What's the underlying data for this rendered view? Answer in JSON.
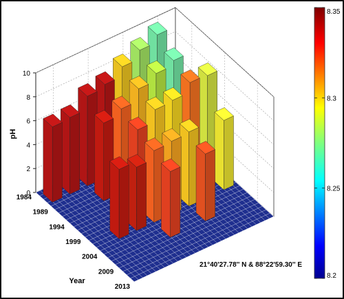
{
  "chart_data": {
    "type": "bar3d",
    "zlabel": "pH",
    "ylabel": "Year",
    "zlim": [
      0,
      10
    ],
    "z_ticks": [
      "0",
      "2",
      "4",
      "6",
      "8",
      "10"
    ],
    "year_ticks": [
      "1984",
      "1989",
      "1994",
      "1999",
      "2004",
      "2009",
      "2013"
    ],
    "annotation": "21°40'27.78'' N & 88°22'59.30'' E",
    "colorbar": {
      "min": 8.2,
      "max": 8.35,
      "ticks": [
        "8.35",
        "8.3",
        "8.25",
        "8.2"
      ],
      "colormap": "jet"
    },
    "grid": true,
    "floor_color": "#1f2f8f",
    "bars": [
      {
        "row": 1,
        "col": 1,
        "height": 6.3,
        "color": "#b01515"
      },
      {
        "row": 1,
        "col": 2,
        "height": 6.4,
        "color": "#b01515"
      },
      {
        "row": 1,
        "col": 3,
        "height": 7.5,
        "color": "#b01515"
      },
      {
        "row": 1,
        "col": 4,
        "height": 7.8,
        "color": "#b01515"
      },
      {
        "row": 1,
        "col": 5,
        "height": 8.6,
        "color": "#e8c020"
      },
      {
        "row": 1,
        "col": 6,
        "height": 9.3,
        "color": "#9fe060"
      },
      {
        "row": 1,
        "col": 7,
        "height": 9.9,
        "color": "#70e0a0"
      },
      {
        "row": 2,
        "col": 3,
        "height": 6.5,
        "color": "#c01a10"
      },
      {
        "row": 2,
        "col": 4,
        "height": 7.0,
        "color": "#f06020"
      },
      {
        "row": 2,
        "col": 5,
        "height": 8.0,
        "color": "#f0b020"
      },
      {
        "row": 2,
        "col": 6,
        "height": 8.6,
        "color": "#b0e040"
      },
      {
        "row": 2,
        "col": 7,
        "height": 9.0,
        "color": "#70e0a0"
      },
      {
        "row": 3,
        "col": 4,
        "height": 6.5,
        "color": "#e04020"
      },
      {
        "row": 3,
        "col": 5,
        "height": 7.5,
        "color": "#f0c020"
      },
      {
        "row": 3,
        "col": 6,
        "height": 7.6,
        "color": "#f0d020"
      },
      {
        "row": 3,
        "col": 7,
        "height": 8.4,
        "color": "#f07020"
      },
      {
        "row": 3,
        "col": 8,
        "height": 8.3,
        "color": "#d0e040"
      },
      {
        "row": 4,
        "col": 2,
        "height": 5.8,
        "color": "#c01a10"
      },
      {
        "row": 4,
        "col": 3,
        "height": 5.3,
        "color": "#c02010"
      },
      {
        "row": 4,
        "col": 4,
        "height": 6.0,
        "color": "#f06020"
      },
      {
        "row": 4,
        "col": 5,
        "height": 6.1,
        "color": "#f0a020"
      },
      {
        "row": 4,
        "col": 6,
        "height": 6.2,
        "color": "#f0c020"
      },
      {
        "row": 4,
        "col": 8,
        "height": 5.8,
        "color": "#e8e030"
      },
      {
        "row": 5,
        "col": 4,
        "height": 5.5,
        "color": "#e04020"
      },
      {
        "row": 5,
        "col": 6,
        "height": 5.6,
        "color": "#e05020"
      }
    ]
  }
}
